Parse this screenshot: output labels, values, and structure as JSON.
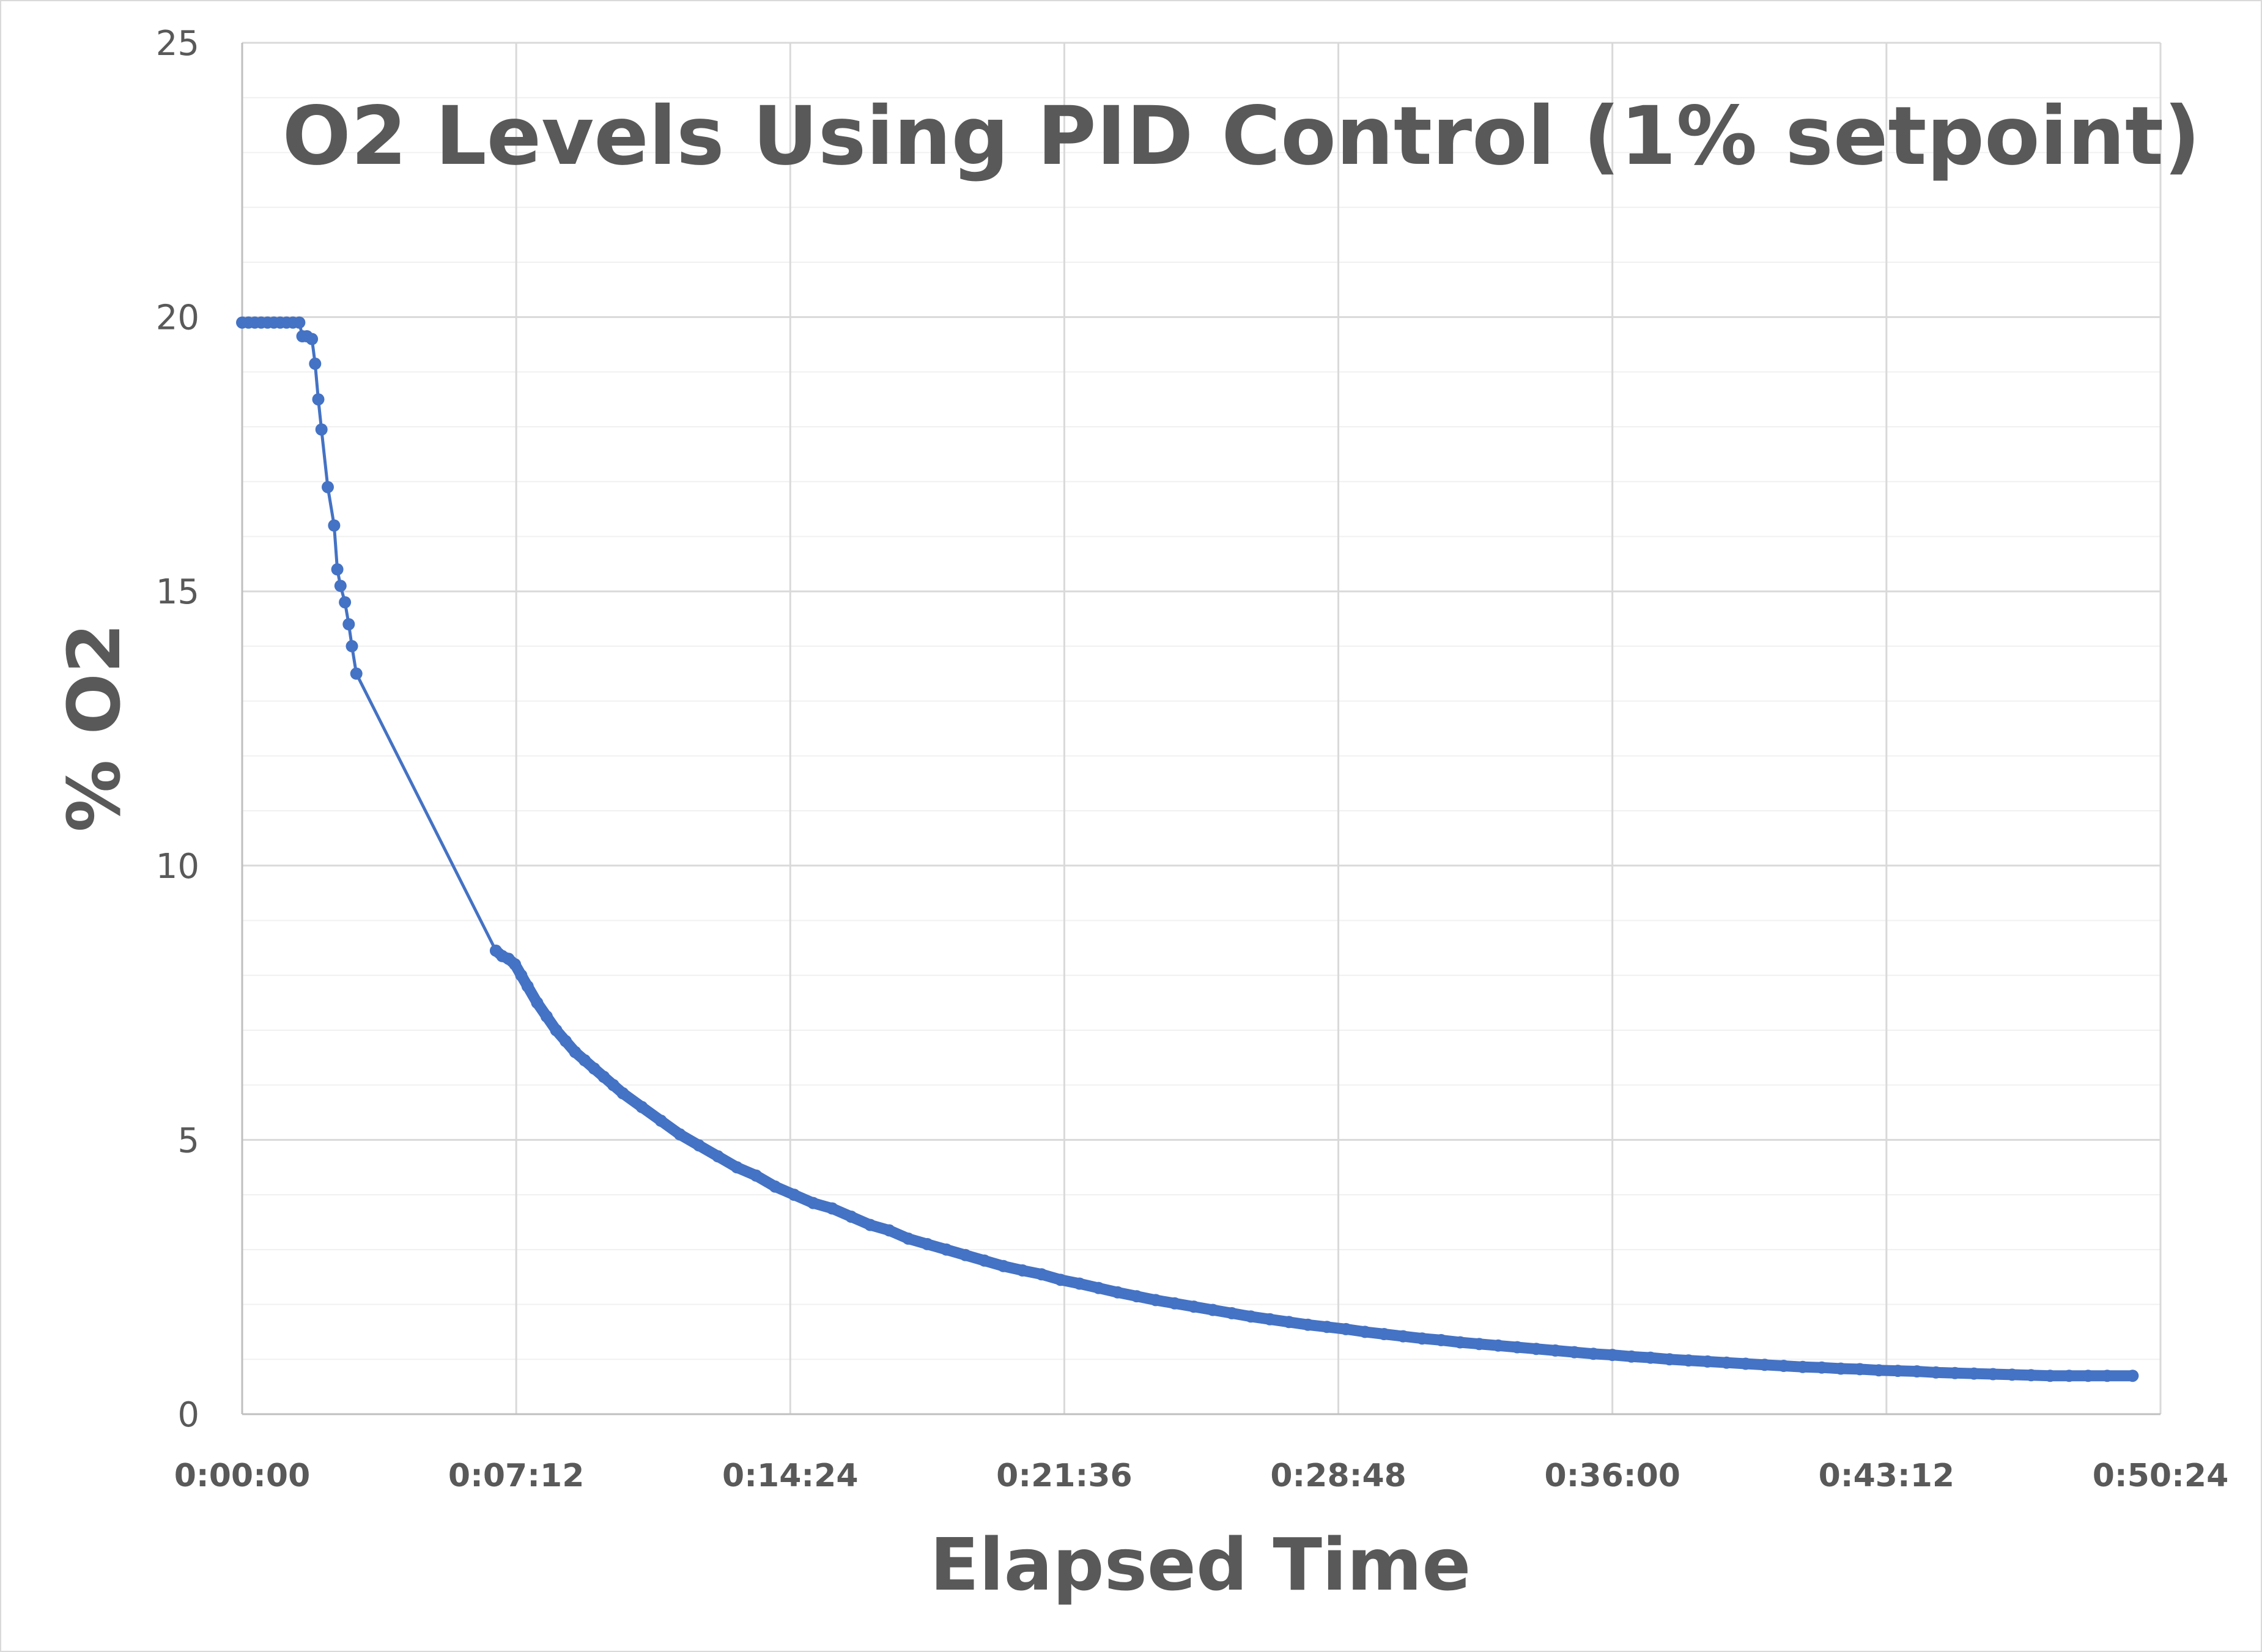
{
  "chart_data": {
    "type": "scatter",
    "title": "O2 Levels Using PID Control (1% setpoint)",
    "xlabel": "Elapsed Time",
    "ylabel": "% O2",
    "ylim": [
      0,
      25
    ],
    "xlim_seconds": [
      0,
      3024
    ],
    "y_ticks": [
      "0",
      "5",
      "10",
      "15",
      "20",
      "25"
    ],
    "x_ticks": [
      "0:00:00",
      "0:07:12",
      "0:14:24",
      "0:21:36",
      "0:28:48",
      "0:36:00",
      "0:43:12",
      "0:50:24"
    ],
    "grid": true,
    "legend": "none",
    "series_color": "#4472c4",
    "series": [
      {
        "points": [
          [
            "0:00:00",
            19.9
          ],
          [
            "0:00:10",
            19.9
          ],
          [
            "0:00:20",
            19.9
          ],
          [
            "0:00:30",
            19.9
          ],
          [
            "0:00:40",
            19.9
          ],
          [
            "0:00:50",
            19.9
          ],
          [
            "0:01:00",
            19.9
          ],
          [
            "0:01:10",
            19.9
          ],
          [
            "0:01:20",
            19.9
          ],
          [
            "0:01:30",
            19.9
          ],
          [
            "0:01:35",
            19.65
          ],
          [
            "0:01:42",
            19.65
          ],
          [
            "0:01:50",
            19.6
          ],
          [
            "0:01:55",
            19.15
          ],
          [
            "0:02:00",
            18.5
          ],
          [
            "0:02:05",
            17.95
          ],
          [
            "0:02:15",
            16.9
          ],
          [
            "0:02:25",
            16.2
          ],
          [
            "0:02:30",
            15.4
          ],
          [
            "0:02:35",
            15.1
          ],
          [
            "0:02:42",
            14.8
          ],
          [
            "0:02:48",
            14.4
          ],
          [
            "0:02:53",
            14.0
          ],
          [
            "0:03:00",
            13.5
          ],
          [
            "0:06:40",
            8.45
          ],
          [
            "0:06:50",
            8.35
          ],
          [
            "0:07:00",
            8.3
          ],
          [
            "0:07:10",
            8.2
          ],
          [
            "0:07:20",
            8.0
          ],
          [
            "0:07:30",
            7.8
          ],
          [
            "0:07:45",
            7.5
          ],
          [
            "0:08:00",
            7.25
          ],
          [
            "0:08:15",
            7.0
          ],
          [
            "0:08:30",
            6.8
          ],
          [
            "0:08:45",
            6.6
          ],
          [
            "0:09:00",
            6.45
          ],
          [
            "0:09:15",
            6.3
          ],
          [
            "0:09:30",
            6.15
          ],
          [
            "0:09:45",
            6.0
          ],
          [
            "0:10:00",
            5.85
          ],
          [
            "0:10:30",
            5.6
          ],
          [
            "0:11:00",
            5.35
          ],
          [
            "0:11:30",
            5.1
          ],
          [
            "0:12:00",
            4.9
          ],
          [
            "0:12:30",
            4.7
          ],
          [
            "0:13:00",
            4.5
          ],
          [
            "0:13:30",
            4.35
          ],
          [
            "0:14:00",
            4.15
          ],
          [
            "0:14:30",
            4.0
          ],
          [
            "0:15:00",
            3.85
          ],
          [
            "0:15:30",
            3.75
          ],
          [
            "0:16:00",
            3.6
          ],
          [
            "0:16:30",
            3.45
          ],
          [
            "0:17:00",
            3.35
          ],
          [
            "0:17:30",
            3.2
          ],
          [
            "0:18:00",
            3.1
          ],
          [
            "0:18:30",
            3.0
          ],
          [
            "0:19:00",
            2.9
          ],
          [
            "0:19:30",
            2.8
          ],
          [
            "0:20:00",
            2.7
          ],
          [
            "0:20:30",
            2.62
          ],
          [
            "0:21:00",
            2.55
          ],
          [
            "0:21:30",
            2.45
          ],
          [
            "0:22:00",
            2.38
          ],
          [
            "0:22:30",
            2.3
          ],
          [
            "0:23:00",
            2.22
          ],
          [
            "0:23:30",
            2.15
          ],
          [
            "0:24:00",
            2.08
          ],
          [
            "0:24:30",
            2.02
          ],
          [
            "0:25:00",
            1.96
          ],
          [
            "0:25:30",
            1.9
          ],
          [
            "0:26:00",
            1.84
          ],
          [
            "0:26:30",
            1.78
          ],
          [
            "0:27:00",
            1.73
          ],
          [
            "0:27:30",
            1.68
          ],
          [
            "0:28:00",
            1.63
          ],
          [
            "0:28:30",
            1.59
          ],
          [
            "0:29:00",
            1.55
          ],
          [
            "0:29:30",
            1.5
          ],
          [
            "0:30:00",
            1.46
          ],
          [
            "0:30:30",
            1.42
          ],
          [
            "0:31:00",
            1.38
          ],
          [
            "0:31:30",
            1.35
          ],
          [
            "0:32:00",
            1.31
          ],
          [
            "0:32:30",
            1.28
          ],
          [
            "0:33:00",
            1.25
          ],
          [
            "0:33:30",
            1.22
          ],
          [
            "0:34:00",
            1.19
          ],
          [
            "0:34:30",
            1.16
          ],
          [
            "0:35:00",
            1.13
          ],
          [
            "0:35:30",
            1.1
          ],
          [
            "0:36:00",
            1.08
          ],
          [
            "0:36:30",
            1.05
          ],
          [
            "0:37:00",
            1.03
          ],
          [
            "0:37:30",
            1.0
          ],
          [
            "0:38:00",
            0.98
          ],
          [
            "0:38:30",
            0.96
          ],
          [
            "0:39:00",
            0.94
          ],
          [
            "0:39:30",
            0.92
          ],
          [
            "0:40:00",
            0.9
          ],
          [
            "0:40:30",
            0.88
          ],
          [
            "0:41:00",
            0.86
          ],
          [
            "0:41:30",
            0.85
          ],
          [
            "0:42:00",
            0.83
          ],
          [
            "0:42:30",
            0.82
          ],
          [
            "0:43:00",
            0.8
          ],
          [
            "0:43:30",
            0.79
          ],
          [
            "0:44:00",
            0.78
          ],
          [
            "0:44:30",
            0.76
          ],
          [
            "0:45:00",
            0.75
          ],
          [
            "0:45:30",
            0.74
          ],
          [
            "0:46:00",
            0.73
          ],
          [
            "0:46:30",
            0.72
          ],
          [
            "0:47:00",
            0.71
          ],
          [
            "0:47:30",
            0.7
          ],
          [
            "0:48:00",
            0.7
          ],
          [
            "0:48:30",
            0.7
          ],
          [
            "0:49:00",
            0.7
          ],
          [
            "0:49:40",
            0.7
          ]
        ]
      }
    ]
  }
}
